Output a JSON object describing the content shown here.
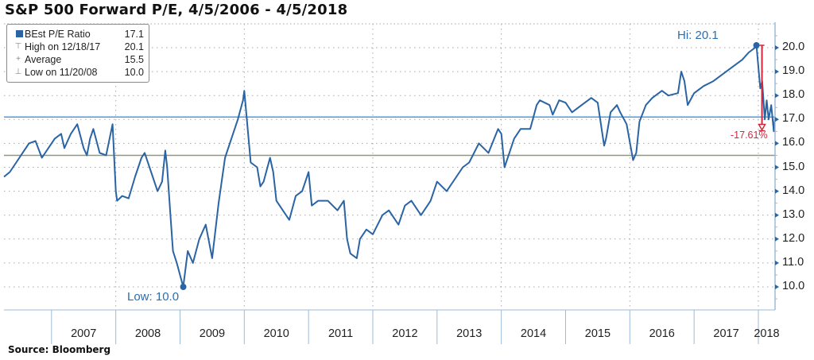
{
  "header": {
    "title": "S&P 500 Forward P/E, 4/5/2006 - 4/5/2018"
  },
  "legend": {
    "rows": [
      {
        "symbol": "square",
        "label": "BEst P/E Ratio",
        "value": "17.1"
      },
      {
        "symbol": "high-marker",
        "label": "High on 12/18/17",
        "value": "20.1"
      },
      {
        "symbol": "average-marker",
        "label": "Average",
        "value": "15.5"
      },
      {
        "symbol": "low-marker",
        "label": "Low on 11/20/08",
        "value": "10.0"
      }
    ]
  },
  "annotations": {
    "high": "Hi: 20.1",
    "low": "Low: 10.0",
    "drawdown": "-17.61%"
  },
  "footer": {
    "source": "Source:  Bloomberg"
  },
  "colors": {
    "series": "#2a64a4",
    "current_line": "#4a9be8",
    "average_line": "#8d9a78",
    "drawdown": "#d0283c",
    "axis": "#9dbbd8",
    "grid": "#a8a8a8",
    "annotation_text": "#2a6eb0"
  },
  "chart_data": {
    "type": "line",
    "title": "S&P 500 Forward P/E, 4/5/2006 - 4/5/2018",
    "xlabel": "",
    "ylabel": "",
    "ylim": [
      9.0,
      20.9
    ],
    "yticks": [
      "20.0",
      "19.0",
      "18.0",
      "17.0",
      "16.0",
      "15.0",
      "14.0",
      "13.0",
      "12.0",
      "11.0",
      "10.0"
    ],
    "xticks": [
      "2007",
      "2008",
      "2009",
      "2010",
      "2011",
      "2012",
      "2013",
      "2014",
      "2015",
      "2016",
      "2017",
      "2018"
    ],
    "grid": true,
    "legend_position": "top-left",
    "series": [
      {
        "name": "BEst P/E Ratio",
        "last_value": 17.1,
        "x": [
          2006.26,
          2006.35,
          2006.45,
          2006.55,
          2006.65,
          2006.75,
          2006.85,
          2006.95,
          2007.05,
          2007.15,
          2007.2,
          2007.3,
          2007.4,
          2007.5,
          2007.55,
          2007.6,
          2007.65,
          2007.75,
          2007.85,
          2007.95,
          2008.0,
          2008.02,
          2008.1,
          2008.2,
          2008.3,
          2008.4,
          2008.45,
          2008.55,
          2008.65,
          2008.72,
          2008.77,
          2008.8,
          2008.85,
          2008.89,
          2008.95,
          2009.05,
          2009.12,
          2009.2,
          2009.3,
          2009.4,
          2009.5,
          2009.6,
          2009.7,
          2009.8,
          2009.9,
          2009.98,
          2010.0,
          2010.1,
          2010.2,
          2010.25,
          2010.3,
          2010.4,
          2010.45,
          2010.5,
          2010.6,
          2010.7,
          2010.8,
          2010.9,
          2011.0,
          2011.05,
          2011.15,
          2011.3,
          2011.45,
          2011.55,
          2011.6,
          2011.65,
          2011.75,
          2011.8,
          2011.9,
          2012.0,
          2012.15,
          2012.25,
          2012.4,
          2012.5,
          2012.6,
          2012.75,
          2012.85,
          2012.9,
          2013.0,
          2013.15,
          2013.3,
          2013.4,
          2013.5,
          2013.65,
          2013.8,
          2013.95,
          2014.0,
          2014.05,
          2014.2,
          2014.3,
          2014.45,
          2014.55,
          2014.6,
          2014.75,
          2014.8,
          2014.9,
          2015.0,
          2015.1,
          2015.25,
          2015.4,
          2015.5,
          2015.6,
          2015.63,
          2015.7,
          2015.8,
          2015.85,
          2015.95,
          2016.05,
          2016.1,
          2016.15,
          2016.25,
          2016.35,
          2016.5,
          2016.6,
          2016.75,
          2016.8,
          2016.85,
          2016.9,
          2017.0,
          2017.15,
          2017.3,
          2017.45,
          2017.6,
          2017.75,
          2017.85,
          2017.95,
          2017.97,
          2018.03,
          2018.06,
          2018.1,
          2018.13,
          2018.16,
          2018.2,
          2018.24,
          2018.26
        ],
        "values": [
          14.6,
          14.8,
          15.2,
          15.6,
          16.0,
          16.1,
          15.4,
          15.8,
          16.2,
          16.4,
          15.8,
          16.4,
          16.8,
          15.8,
          15.5,
          16.2,
          16.6,
          15.6,
          15.5,
          16.8,
          14.0,
          13.6,
          13.8,
          13.7,
          14.6,
          15.4,
          15.6,
          14.8,
          14.0,
          14.4,
          15.7,
          15.0,
          13.0,
          11.5,
          11.0,
          10.0,
          11.5,
          11.0,
          12.0,
          12.6,
          11.2,
          13.5,
          15.4,
          16.2,
          17.0,
          17.8,
          18.2,
          15.2,
          15.0,
          14.2,
          14.4,
          15.4,
          14.8,
          13.6,
          13.2,
          12.8,
          13.8,
          14.0,
          14.8,
          13.4,
          13.6,
          13.6,
          13.2,
          13.6,
          12.0,
          11.4,
          11.2,
          12.0,
          12.4,
          12.2,
          13.0,
          13.2,
          12.6,
          13.4,
          13.6,
          13.0,
          13.4,
          13.6,
          14.4,
          14.0,
          14.6,
          15.0,
          15.2,
          16.0,
          15.6,
          16.6,
          16.4,
          15.0,
          16.2,
          16.6,
          16.6,
          17.6,
          17.8,
          17.6,
          17.2,
          17.8,
          17.7,
          17.3,
          17.6,
          17.9,
          17.7,
          15.9,
          16.2,
          17.3,
          17.6,
          17.3,
          16.8,
          15.3,
          15.6,
          16.9,
          17.6,
          17.9,
          18.2,
          18.0,
          18.1,
          19.0,
          18.6,
          17.6,
          18.1,
          18.4,
          18.6,
          18.9,
          19.2,
          19.5,
          19.8,
          20.0,
          20.1,
          18.3,
          18.6,
          17.0,
          17.8,
          17.0,
          17.6,
          16.5,
          17.1
        ]
      }
    ],
    "reference_lines": [
      {
        "name": "Current",
        "value": 17.1
      },
      {
        "name": "Average",
        "value": 15.5
      }
    ],
    "points": [
      {
        "name": "High",
        "date": "12/18/17",
        "value": 20.1
      },
      {
        "name": "Low",
        "date": "11/20/08",
        "value": 10.0
      }
    ],
    "drawdown_annotation": {
      "from": 20.1,
      "to": 16.56,
      "label": "-17.61%"
    }
  }
}
